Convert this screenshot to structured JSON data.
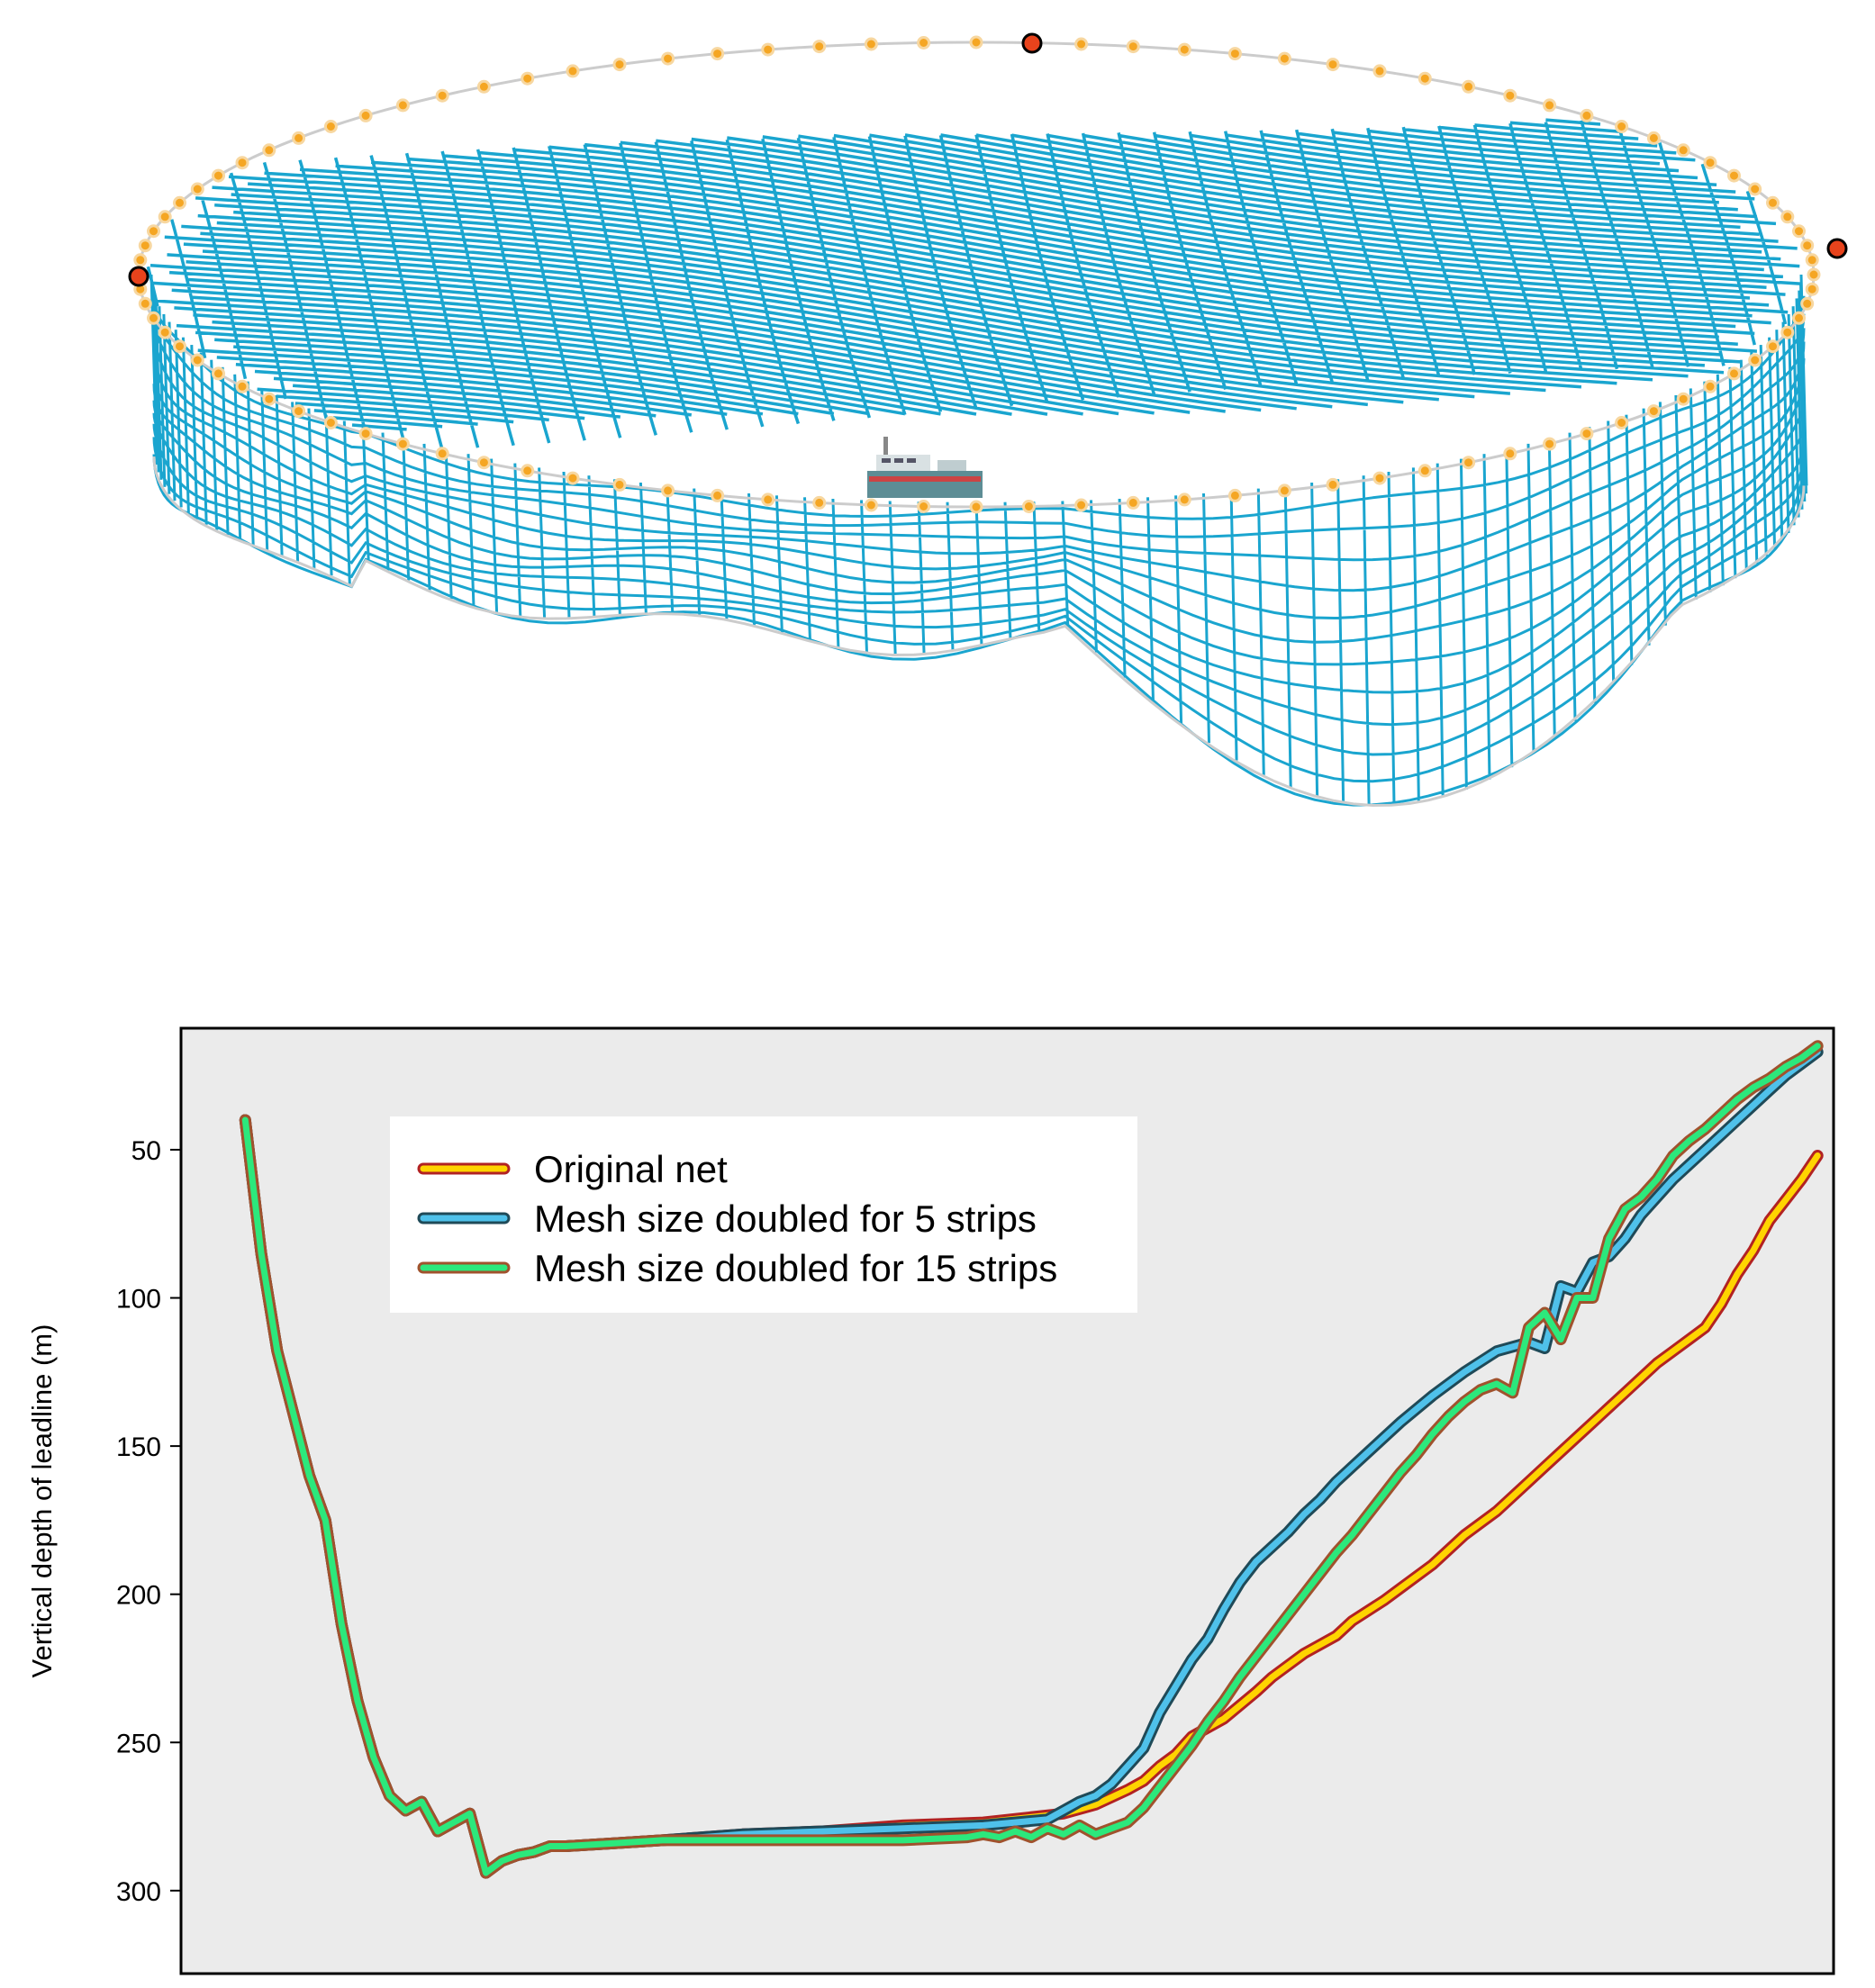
{
  "figure": {
    "top_panel": {
      "net_color": "#1aa5cf",
      "float_color": "#f5a623",
      "marker_color": "#e8431c",
      "rope_color": "#cccccc"
    }
  },
  "chart_data": {
    "type": "line",
    "title": "",
    "xlabel": "",
    "ylabel": "Vertical depth of leadline (m)",
    "ylim": [
      328,
      9
    ],
    "y_inverted": true,
    "xlim": [
      0,
      103
    ],
    "yticks": [
      "50",
      "100",
      "150",
      "200",
      "250",
      "300"
    ],
    "ytick_values": [
      50,
      100,
      150,
      200,
      250,
      300
    ],
    "background": "#ebebeb",
    "legend": {
      "placement": "top-left"
    },
    "series": [
      {
        "name": "Original net",
        "color": "#ffd400",
        "edge_color": "#b22222",
        "x": [
          4,
          5,
          6,
          8,
          9,
          10,
          11,
          12,
          13,
          14,
          15,
          16,
          17,
          18,
          19,
          20,
          21,
          22,
          23,
          24,
          27,
          30,
          35,
          40,
          45,
          50,
          55,
          57,
          59,
          60,
          61,
          62,
          63,
          65,
          67,
          68,
          70,
          72,
          73,
          75,
          76,
          78,
          80,
          82,
          84,
          85,
          86,
          87,
          88,
          89,
          90,
          91,
          92,
          93,
          94,
          95,
          96,
          97,
          98,
          99,
          100,
          101,
          102
        ],
        "values": [
          40,
          85,
          118,
          160,
          175,
          210,
          236,
          255,
          268,
          273,
          270,
          280,
          277,
          274,
          294,
          290,
          288,
          287,
          285,
          285,
          284,
          283,
          281,
          280,
          278,
          277,
          274,
          271,
          266,
          263,
          258,
          254,
          248,
          242,
          233,
          228,
          220,
          214,
          209,
          202,
          198,
          190,
          180,
          172,
          162,
          157,
          152,
          147,
          142,
          137,
          132,
          127,
          122,
          118,
          114,
          110,
          102,
          92,
          84,
          74,
          67,
          60,
          52
        ]
      },
      {
        "name": "Mesh size doubled for 5 strips",
        "color": "#4fc1ea",
        "edge_color": "#1f4a58",
        "x": [
          4,
          5,
          6,
          8,
          9,
          10,
          11,
          12,
          13,
          14,
          15,
          16,
          17,
          18,
          19,
          20,
          21,
          22,
          23,
          24,
          27,
          30,
          35,
          40,
          45,
          50,
          52,
          54,
          55,
          56,
          57,
          58,
          59,
          60,
          61,
          62,
          63,
          64,
          65,
          66,
          67,
          68,
          69,
          70,
          71,
          72,
          73,
          74,
          75,
          76,
          78,
          80,
          82,
          84,
          85,
          86,
          87,
          88,
          89,
          90,
          91,
          92,
          93,
          94,
          95,
          96,
          97,
          98,
          99,
          100,
          101,
          102
        ],
        "values": [
          40,
          85,
          118,
          160,
          175,
          210,
          236,
          255,
          268,
          273,
          270,
          280,
          277,
          274,
          294,
          290,
          288,
          287,
          285,
          285,
          284,
          283,
          281,
          280,
          279,
          278,
          277,
          276,
          273,
          270,
          268,
          264,
          258,
          252,
          240,
          231,
          222,
          215,
          205,
          196,
          189,
          184,
          179,
          173,
          168,
          162,
          157,
          152,
          147,
          142,
          133,
          125,
          118,
          115,
          117,
          96,
          98,
          88,
          86,
          80,
          72,
          66,
          60,
          55,
          50,
          45,
          40,
          35,
          30,
          25,
          21,
          17
        ]
      },
      {
        "name": "Mesh size doubled for 15 strips",
        "color": "#2ce87c",
        "edge_color": "#a0522d",
        "x": [
          4,
          5,
          6,
          8,
          9,
          10,
          11,
          12,
          13,
          14,
          15,
          16,
          17,
          18,
          19,
          20,
          21,
          22,
          23,
          24,
          27,
          30,
          35,
          40,
          45,
          49,
          50,
          51,
          52,
          53,
          54,
          55,
          56,
          57,
          58,
          59,
          60,
          61,
          62,
          63,
          64,
          65,
          66,
          67,
          68,
          69,
          70,
          71,
          72,
          73,
          74,
          75,
          76,
          77,
          78,
          79,
          80,
          81,
          82,
          83,
          84,
          85,
          86,
          87,
          88,
          89,
          90,
          91,
          92,
          93,
          94,
          95,
          96,
          97,
          98,
          99,
          100,
          101,
          102
        ],
        "values": [
          40,
          85,
          118,
          160,
          175,
          210,
          236,
          255,
          268,
          273,
          270,
          280,
          277,
          274,
          294,
          290,
          288,
          287,
          285,
          285,
          284,
          283,
          283,
          283,
          283,
          282,
          281,
          282,
          280,
          282,
          279,
          281,
          278,
          281,
          279,
          277,
          272,
          265,
          258,
          251,
          243,
          236,
          228,
          221,
          214,
          207,
          200,
          193,
          186,
          180,
          173,
          166,
          159,
          153,
          146,
          140,
          135,
          131,
          129,
          132,
          110,
          105,
          114,
          100,
          100,
          80,
          70,
          66,
          60,
          52,
          47,
          43,
          38,
          33,
          29,
          26,
          22,
          19,
          15
        ]
      }
    ]
  }
}
